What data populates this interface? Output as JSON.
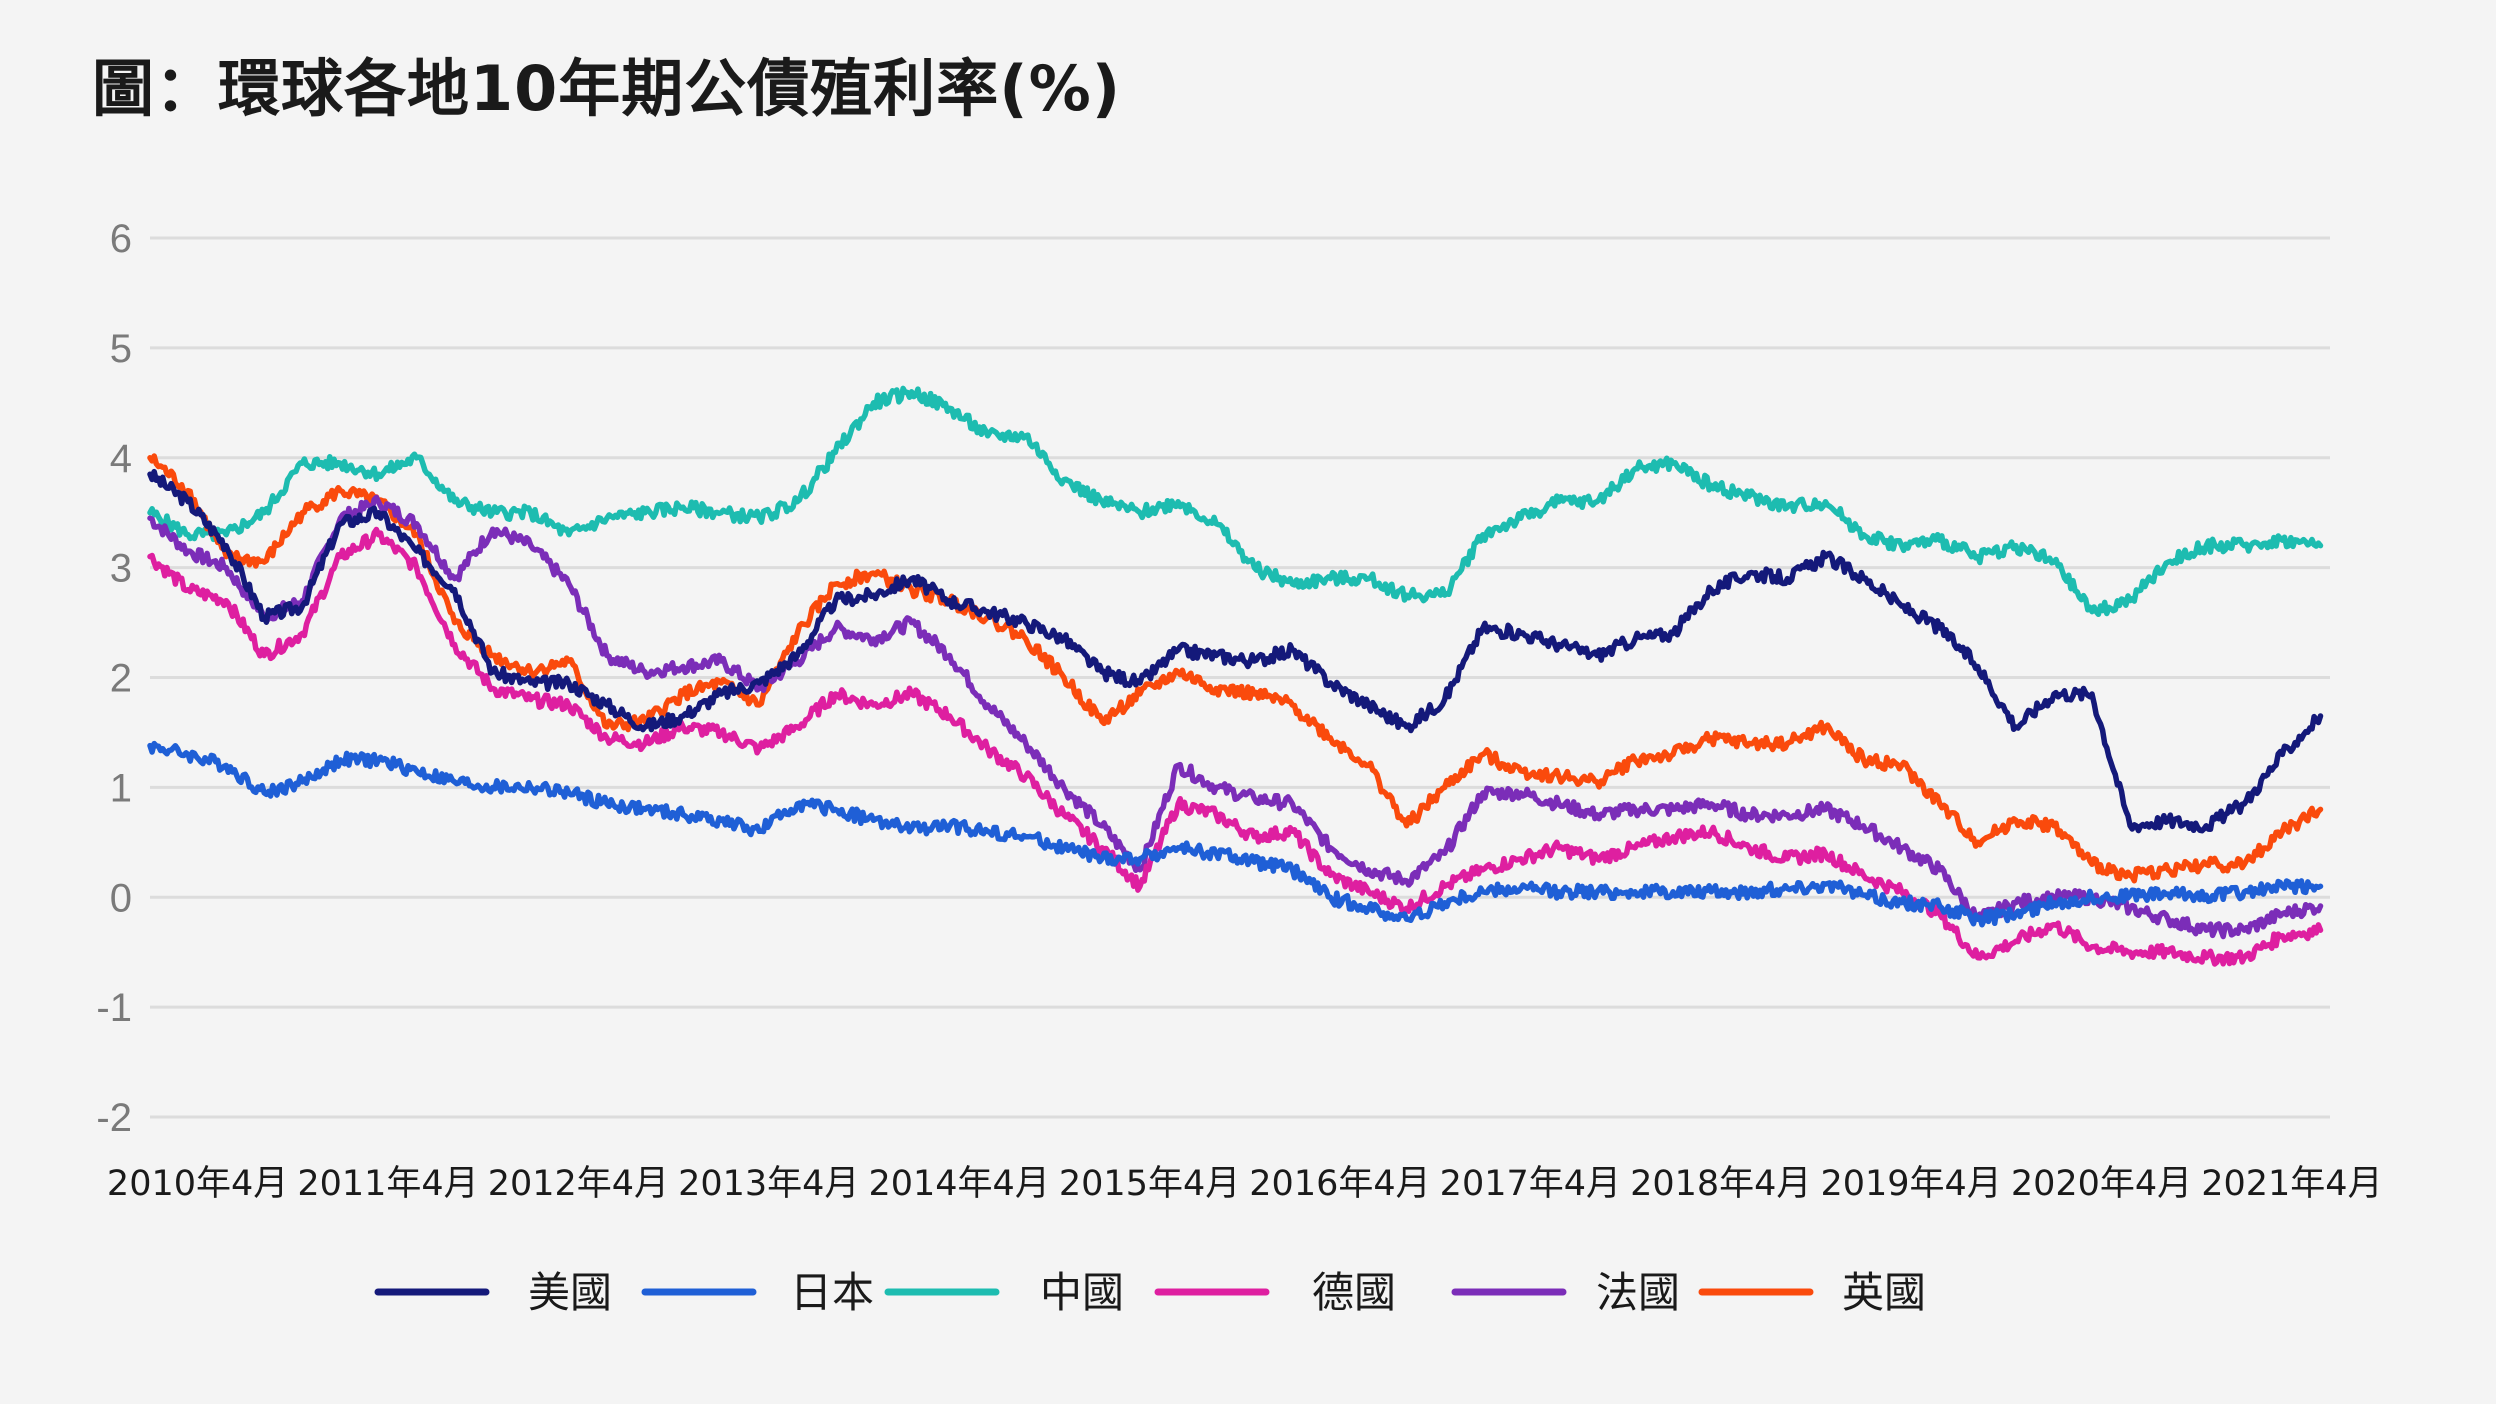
{
  "title": "圖：環球各地10年期公債殖利率(%)",
  "chart_data": {
    "type": "line",
    "title": "圖：環球各地10年期公債殖利率(%)",
    "xlabel": "",
    "ylabel": "",
    "ylim": [
      -2,
      6
    ],
    "xlim": [
      2010.0,
      2021.45
    ],
    "yticks": [
      "6",
      "5",
      "4",
      "3",
      "2",
      "1",
      "0",
      "-1",
      "-2"
    ],
    "ytick_values": [
      6,
      5,
      4,
      3,
      2,
      1,
      0,
      -1,
      -2
    ],
    "xticks": [
      "2010年4月",
      "2011年4月",
      "2012年4月",
      "2013年4月",
      "2014年4月",
      "2015年4月",
      "2016年4月",
      "2017年4月",
      "2018年4月",
      "2019年4月",
      "2020年4月",
      "2021年4月"
    ],
    "xtick_values": [
      2010.25,
      2011.25,
      2012.25,
      2013.25,
      2014.25,
      2015.25,
      2016.25,
      2017.25,
      2018.25,
      2019.25,
      2020.25,
      2021.25
    ],
    "grid": "horizontal",
    "legend": "bottom",
    "series": [
      {
        "name": "美國",
        "color": "#14197a",
        "x": [
          2010.0,
          2010.2,
          2010.4,
          2010.6,
          2010.8,
          2011.0,
          2011.2,
          2011.4,
          2011.6,
          2011.8,
          2012.0,
          2012.2,
          2012.4,
          2012.6,
          2012.8,
          2013.0,
          2013.2,
          2013.4,
          2013.6,
          2013.8,
          2014.0,
          2014.2,
          2014.4,
          2014.6,
          2014.8,
          2015.0,
          2015.2,
          2015.4,
          2015.6,
          2015.8,
          2016.0,
          2016.2,
          2016.4,
          2016.6,
          2016.8,
          2017.0,
          2017.2,
          2017.4,
          2017.6,
          2017.8,
          2018.0,
          2018.2,
          2018.4,
          2018.6,
          2018.8,
          2019.0,
          2019.2,
          2019.4,
          2019.6,
          2019.8,
          2020.0,
          2020.2,
          2020.4,
          2020.6,
          2020.8,
          2021.0,
          2021.2,
          2021.4
        ],
        "y": [
          3.85,
          3.6,
          3.2,
          2.55,
          2.65,
          3.4,
          3.5,
          3.15,
          2.8,
          2.05,
          1.95,
          1.95,
          1.75,
          1.55,
          1.65,
          1.85,
          1.95,
          2.2,
          2.7,
          2.75,
          2.9,
          2.7,
          2.6,
          2.5,
          2.35,
          2.05,
          1.95,
          2.25,
          2.2,
          2.15,
          2.25,
          1.95,
          1.75,
          1.55,
          1.8,
          2.45,
          2.4,
          2.3,
          2.2,
          2.35,
          2.4,
          2.8,
          2.95,
          2.9,
          3.1,
          2.9,
          2.65,
          2.45,
          2.1,
          1.55,
          1.85,
          1.85,
          0.65,
          0.7,
          0.65,
          0.85,
          1.3,
          1.65
        ]
      },
      {
        "name": "日本",
        "color": "#1f5fd6",
        "x": [
          2010.0,
          2010.2,
          2010.4,
          2010.6,
          2010.8,
          2011.0,
          2011.2,
          2011.4,
          2011.6,
          2011.8,
          2012.0,
          2012.2,
          2012.4,
          2012.6,
          2012.8,
          2013.0,
          2013.2,
          2013.4,
          2013.6,
          2013.8,
          2014.0,
          2014.2,
          2014.4,
          2014.6,
          2014.8,
          2015.0,
          2015.2,
          2015.4,
          2015.6,
          2015.8,
          2016.0,
          2016.2,
          2016.4,
          2016.6,
          2016.8,
          2017.0,
          2017.2,
          2017.4,
          2017.6,
          2017.8,
          2018.0,
          2018.2,
          2018.4,
          2018.6,
          2018.8,
          2019.0,
          2019.2,
          2019.4,
          2019.6,
          2019.8,
          2020.0,
          2020.2,
          2020.4,
          2020.6,
          2020.8,
          2021.0,
          2021.2,
          2021.4
        ],
        "y": [
          1.38,
          1.3,
          1.2,
          0.95,
          1.05,
          1.25,
          1.25,
          1.15,
          1.05,
          1.0,
          1.0,
          0.95,
          0.85,
          0.8,
          0.75,
          0.7,
          0.6,
          0.85,
          0.8,
          0.7,
          0.62,
          0.65,
          0.6,
          0.55,
          0.45,
          0.35,
          0.35,
          0.45,
          0.4,
          0.32,
          0.25,
          0.0,
          -0.1,
          -0.2,
          -0.05,
          0.05,
          0.08,
          0.05,
          0.05,
          0.05,
          0.05,
          0.05,
          0.05,
          0.08,
          0.12,
          0.02,
          -0.05,
          -0.08,
          -0.2,
          -0.15,
          -0.05,
          0.0,
          0.02,
          0.03,
          0.02,
          0.05,
          0.1,
          0.1
        ]
      },
      {
        "name": "中國",
        "color": "#1dbcb0",
        "x": [
          2010.0,
          2010.2,
          2010.4,
          2010.6,
          2010.8,
          2011.0,
          2011.2,
          2011.4,
          2011.6,
          2011.8,
          2012.0,
          2012.2,
          2012.4,
          2012.6,
          2012.8,
          2013.0,
          2013.2,
          2013.4,
          2013.6,
          2013.8,
          2014.0,
          2014.2,
          2014.4,
          2014.6,
          2014.8,
          2015.0,
          2015.2,
          2015.4,
          2015.6,
          2015.8,
          2016.0,
          2016.2,
          2016.4,
          2016.6,
          2016.8,
          2017.0,
          2017.2,
          2017.4,
          2017.6,
          2017.8,
          2018.0,
          2018.2,
          2018.4,
          2018.6,
          2018.8,
          2019.0,
          2019.2,
          2019.4,
          2019.6,
          2019.8,
          2020.0,
          2020.2,
          2020.4,
          2020.6,
          2020.8,
          2021.0,
          2021.2,
          2021.4
        ],
        "y": [
          3.5,
          3.3,
          3.3,
          3.5,
          3.95,
          3.95,
          3.85,
          4.0,
          3.6,
          3.5,
          3.5,
          3.3,
          3.45,
          3.5,
          3.55,
          3.5,
          3.45,
          3.6,
          4.05,
          4.5,
          4.6,
          4.45,
          4.2,
          4.2,
          3.8,
          3.6,
          3.5,
          3.6,
          3.4,
          3.0,
          2.85,
          2.9,
          2.9,
          2.75,
          2.75,
          3.3,
          3.45,
          3.6,
          3.6,
          3.9,
          3.95,
          3.75,
          3.65,
          3.55,
          3.6,
          3.3,
          3.2,
          3.25,
          3.1,
          3.2,
          3.05,
          2.6,
          2.7,
          3.05,
          3.2,
          3.2,
          3.25,
          3.2
        ]
      },
      {
        "name": "德國",
        "color": "#de1fa0",
        "x": [
          2010.0,
          2010.2,
          2010.4,
          2010.6,
          2010.8,
          2011.0,
          2011.2,
          2011.4,
          2011.6,
          2011.8,
          2012.0,
          2012.2,
          2012.4,
          2012.6,
          2012.8,
          2013.0,
          2013.2,
          2013.4,
          2013.6,
          2013.8,
          2014.0,
          2014.2,
          2014.4,
          2014.6,
          2014.8,
          2015.0,
          2015.2,
          2015.4,
          2015.6,
          2015.8,
          2016.0,
          2016.2,
          2016.4,
          2016.6,
          2016.8,
          2017.0,
          2017.2,
          2017.4,
          2017.6,
          2017.8,
          2018.0,
          2018.2,
          2018.4,
          2018.6,
          2018.8,
          2019.0,
          2019.2,
          2019.4,
          2019.6,
          2019.8,
          2020.0,
          2020.2,
          2020.4,
          2020.6,
          2020.8,
          2021.0,
          2021.2,
          2021.4
        ],
        "y": [
          3.1,
          2.8,
          2.7,
          2.2,
          2.4,
          3.1,
          3.3,
          3.0,
          2.3,
          1.9,
          1.8,
          1.75,
          1.45,
          1.4,
          1.55,
          1.5,
          1.35,
          1.55,
          1.85,
          1.75,
          1.85,
          1.65,
          1.35,
          1.1,
          0.75,
          0.45,
          0.1,
          0.85,
          0.75,
          0.55,
          0.6,
          0.2,
          0.05,
          -0.1,
          0.1,
          0.25,
          0.35,
          0.45,
          0.35,
          0.45,
          0.55,
          0.6,
          0.45,
          0.35,
          0.4,
          0.2,
          0.05,
          -0.15,
          -0.55,
          -0.4,
          -0.25,
          -0.45,
          -0.5,
          -0.5,
          -0.55,
          -0.55,
          -0.35,
          -0.3
        ]
      },
      {
        "name": "法國",
        "color": "#7b2db8",
        "x": [
          2010.0,
          2010.2,
          2010.4,
          2010.6,
          2010.8,
          2011.0,
          2011.2,
          2011.4,
          2011.6,
          2011.8,
          2012.0,
          2012.2,
          2012.4,
          2012.6,
          2012.8,
          2013.0,
          2013.2,
          2013.4,
          2013.6,
          2013.8,
          2014.0,
          2014.2,
          2014.4,
          2014.6,
          2014.8,
          2015.0,
          2015.2,
          2015.4,
          2015.6,
          2015.8,
          2016.0,
          2016.2,
          2016.4,
          2016.6,
          2016.8,
          2017.0,
          2017.2,
          2017.4,
          2017.6,
          2017.8,
          2018.0,
          2018.2,
          2018.4,
          2018.6,
          2018.8,
          2019.0,
          2019.2,
          2019.4,
          2019.6,
          2019.8,
          2020.0,
          2020.2,
          2020.4,
          2020.6,
          2020.8,
          2021.0,
          2021.2,
          2021.4
        ],
        "y": [
          3.45,
          3.15,
          3.0,
          2.55,
          2.7,
          3.45,
          3.6,
          3.4,
          2.9,
          3.35,
          3.2,
          2.85,
          2.2,
          2.05,
          2.1,
          2.15,
          1.9,
          2.15,
          2.45,
          2.35,
          2.5,
          2.2,
          1.75,
          1.4,
          1.0,
          0.65,
          0.25,
          1.2,
          1.0,
          0.9,
          0.85,
          0.45,
          0.25,
          0.15,
          0.4,
          0.95,
          0.95,
          0.85,
          0.75,
          0.8,
          0.8,
          0.85,
          0.75,
          0.75,
          0.8,
          0.65,
          0.45,
          0.25,
          -0.2,
          -0.05,
          0.0,
          0.0,
          -0.1,
          -0.2,
          -0.3,
          -0.3,
          -0.15,
          -0.08
        ]
      },
      {
        "name": "英國",
        "color": "#fa4a0c",
        "x": [
          2010.0,
          2010.2,
          2010.4,
          2010.6,
          2010.8,
          2011.0,
          2011.2,
          2011.4,
          2011.6,
          2011.8,
          2012.0,
          2012.2,
          2012.4,
          2012.6,
          2012.8,
          2013.0,
          2013.2,
          2013.4,
          2013.6,
          2013.8,
          2014.0,
          2014.2,
          2014.4,
          2014.6,
          2014.8,
          2015.0,
          2015.2,
          2015.4,
          2015.6,
          2015.8,
          2016.0,
          2016.2,
          2016.4,
          2016.6,
          2016.8,
          2017.0,
          2017.2,
          2017.4,
          2017.6,
          2017.8,
          2018.0,
          2018.2,
          2018.4,
          2018.6,
          2018.8,
          2019.0,
          2019.2,
          2019.4,
          2019.6,
          2019.8,
          2020.0,
          2020.2,
          2020.4,
          2020.6,
          2020.8,
          2021.0,
          2021.2,
          2021.4
        ],
        "y": [
          4.0,
          3.7,
          3.1,
          3.05,
          3.5,
          3.7,
          3.6,
          3.3,
          2.5,
          2.2,
          2.05,
          2.15,
          1.55,
          1.6,
          1.85,
          1.95,
          1.75,
          2.4,
          2.85,
          2.95,
          2.8,
          2.7,
          2.55,
          2.35,
          2.0,
          1.6,
          1.85,
          2.05,
          1.9,
          1.85,
          1.75,
          1.45,
          1.2,
          0.65,
          1.0,
          1.3,
          1.15,
          1.1,
          1.05,
          1.25,
          1.3,
          1.45,
          1.4,
          1.4,
          1.55,
          1.25,
          1.2,
          0.85,
          0.5,
          0.7,
          0.65,
          0.3,
          0.2,
          0.25,
          0.3,
          0.3,
          0.6,
          0.8
        ]
      }
    ]
  }
}
